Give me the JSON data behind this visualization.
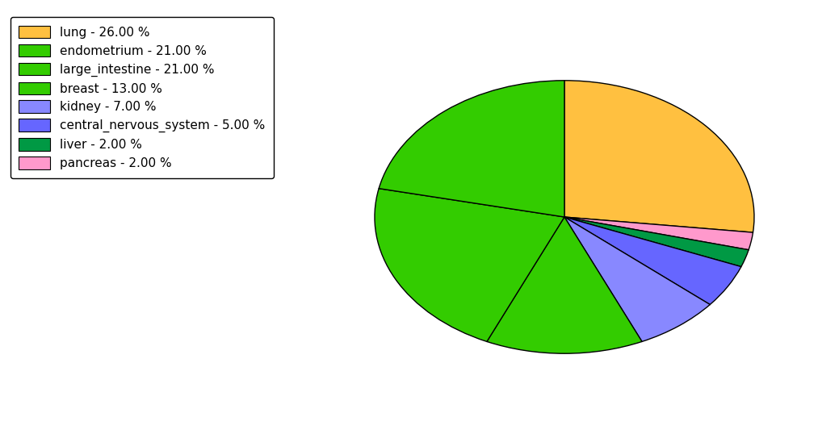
{
  "labels": [
    "lung",
    "pancreas",
    "liver",
    "central_nervous_system",
    "kidney",
    "breast",
    "large_intestine",
    "endometrium"
  ],
  "values": [
    26.0,
    2.0,
    2.0,
    5.0,
    7.0,
    13.0,
    21.0,
    21.0
  ],
  "colors": [
    "#FFC040",
    "#FF99CC",
    "#00AA44",
    "#7777EE",
    "#7777EE",
    "#44DD00",
    "#44DD00",
    "#44DD00"
  ],
  "pie_colors": [
    "#FFC040",
    "#FF99CC",
    "#009944",
    "#6666FF",
    "#8888FF",
    "#33CC00",
    "#33CC00",
    "#33CC00"
  ],
  "legend_labels": [
    "lung - 26.00 %",
    "endometrium - 21.00 %",
    "large_intestine - 21.00 %",
    "breast - 13.00 %",
    "kidney - 7.00 %",
    "central_nervous_system - 5.00 %",
    "liver - 2.00 %",
    "pancreas - 2.00 %"
  ],
  "legend_colors": [
    "#FFC040",
    "#33CC00",
    "#33CC00",
    "#33CC00",
    "#8888FF",
    "#6666FF",
    "#009944",
    "#FF99CC"
  ],
  "figsize": [
    10.13,
    5.38
  ],
  "dpi": 100,
  "startangle": 90,
  "aspect_ratio": 0.72
}
